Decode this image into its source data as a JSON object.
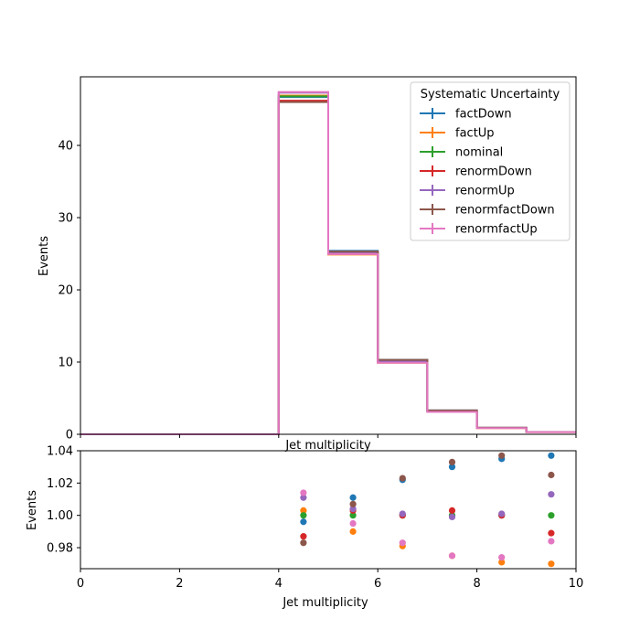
{
  "chart_data": [
    {
      "type": "step",
      "xlabel": "Jet multiplicity",
      "ylabel": "Events",
      "xlim": [
        0,
        10
      ],
      "ylim": [
        0,
        49.5
      ],
      "yticks": [
        0,
        10,
        20,
        30,
        40
      ],
      "bin_edges": [
        0,
        1,
        2,
        3,
        4,
        5,
        6,
        7,
        8,
        9,
        10
      ],
      "legend": {
        "title": "Systematic Uncertainty",
        "placement": "upper right"
      },
      "series": [
        {
          "name": "factDown",
          "color": "#1f77b4",
          "values": [
            0,
            0,
            0,
            0,
            46.7,
            25.4,
            10.3,
            3.3,
            0.9,
            0.32
          ]
        },
        {
          "name": "factUp",
          "color": "#ff7f0e",
          "values": [
            0,
            0,
            0,
            0,
            46.9,
            24.9,
            9.9,
            3.2,
            0.86,
            0.3
          ]
        },
        {
          "name": "nominal",
          "color": "#2ca02c",
          "values": [
            0,
            0,
            0,
            0,
            46.8,
            25.1,
            10.1,
            3.2,
            0.88,
            0.31
          ]
        },
        {
          "name": "renormDown",
          "color": "#d62728",
          "values": [
            0,
            0,
            0,
            0,
            46.2,
            25.2,
            10.1,
            3.2,
            0.88,
            0.31
          ]
        },
        {
          "name": "renormUp",
          "color": "#9467bd",
          "values": [
            0,
            0,
            0,
            0,
            47.3,
            25.2,
            10.1,
            3.2,
            0.88,
            0.31
          ]
        },
        {
          "name": "renormfactDown",
          "color": "#8c564b",
          "values": [
            0,
            0,
            0,
            0,
            46.0,
            25.3,
            10.3,
            3.3,
            0.91,
            0.32
          ]
        },
        {
          "name": "renormfactUp",
          "color": "#e377c2",
          "values": [
            0,
            0,
            0,
            0,
            47.4,
            24.95,
            9.9,
            3.1,
            0.86,
            0.3
          ]
        }
      ]
    },
    {
      "type": "scatter",
      "xlabel": "Jet multiplicity",
      "ylabel": "Events",
      "xlim": [
        0,
        10
      ],
      "ylim": [
        0.967,
        1.04
      ],
      "xticks": [
        0,
        2,
        4,
        6,
        8,
        10
      ],
      "yticks": [
        0.98,
        1.0,
        1.02,
        1.04
      ],
      "ytick_labels": [
        "0.98",
        "1.00",
        "1.02",
        "1.04"
      ],
      "x": [
        4.5,
        5.5,
        6.5,
        7.5,
        8.5,
        9.5
      ],
      "series": [
        {
          "name": "factDown",
          "color": "#1f77b4",
          "values": [
            0.996,
            1.011,
            1.022,
            1.03,
            1.035,
            1.037
          ]
        },
        {
          "name": "factUp",
          "color": "#ff7f0e",
          "values": [
            1.003,
            0.99,
            0.981,
            0.975,
            0.971,
            0.97
          ]
        },
        {
          "name": "nominal",
          "color": "#2ca02c",
          "values": [
            1.0,
            1.0,
            1.0,
            1.0,
            1.0,
            1.0
          ]
        },
        {
          "name": "renormDown",
          "color": "#d62728",
          "values": [
            0.987,
            1.003,
            1.0,
            1.003,
            1.0,
            0.989
          ]
        },
        {
          "name": "renormUp",
          "color": "#9467bd",
          "values": [
            1.011,
            1.004,
            1.001,
            0.999,
            1.001,
            1.013
          ]
        },
        {
          "name": "renormfactDown",
          "color": "#8c564b",
          "values": [
            0.983,
            1.007,
            1.023,
            1.033,
            1.037,
            1.025
          ]
        },
        {
          "name": "renormfactUp",
          "color": "#e377c2",
          "values": [
            1.014,
            0.995,
            0.983,
            0.975,
            0.974,
            0.984
          ]
        }
      ]
    }
  ]
}
